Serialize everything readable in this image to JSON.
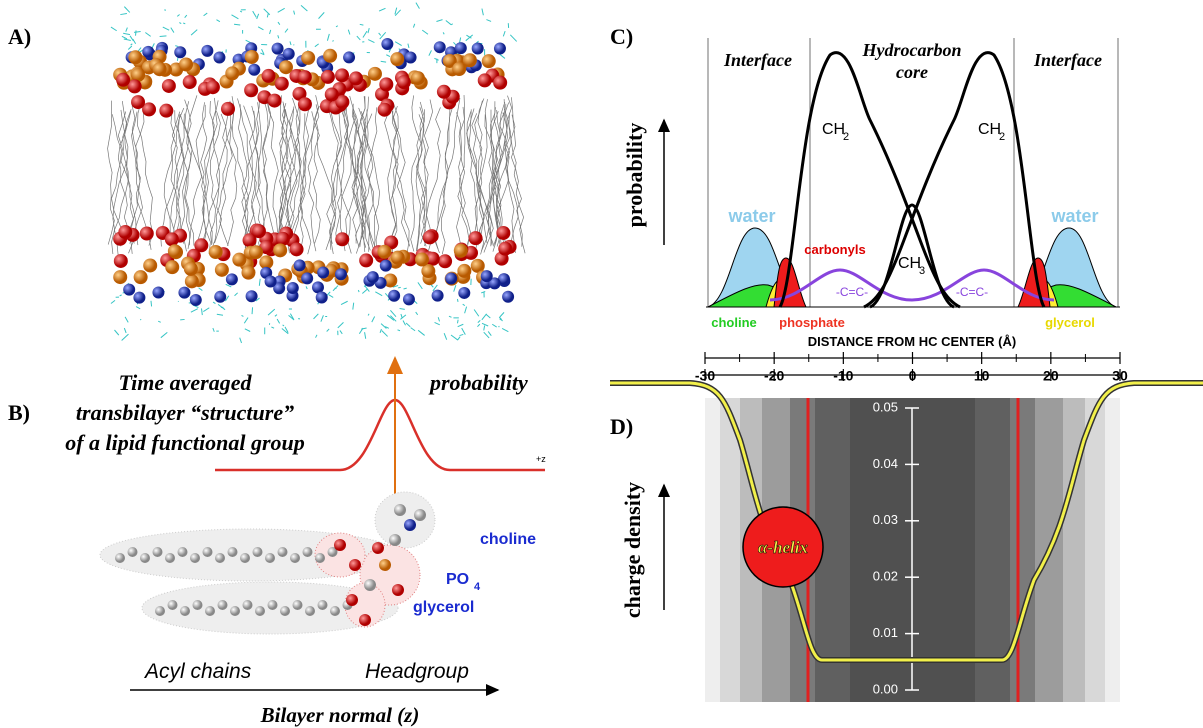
{
  "panels": {
    "a": {
      "label": "A)"
    },
    "b": {
      "label": "B)",
      "title_lines": [
        "Time averaged",
        "transbilayer “structure”",
        "of a lipid functional group"
      ],
      "probability": "probability",
      "z_label": "+z",
      "choline": "choline",
      "po4": "PO",
      "po4_sub": "4",
      "glycerol": "glycerol",
      "acyl": "Acyl chains",
      "headgroup": "Headgroup",
      "normal": "Bilayer normal (z)"
    },
    "c": {
      "label": "C)",
      "y_label": "probability",
      "interface_left": "Interface",
      "core_lines": [
        "Hydrocarbon",
        "core"
      ],
      "interface_right": "Interface",
      "ch2": "CH",
      "ch2_sub": "2",
      "ch3": "CH",
      "ch3_sub": "3",
      "water": "water",
      "carbonyls": "carbonyls",
      "cc": "-C=C-",
      "choline": "choline",
      "phosphate": "phosphate",
      "glycerol": "glycerol"
    },
    "d": {
      "label": "D)",
      "y_label": "charge density",
      "helix": "α-helix",
      "ylim": [
        0,
        0.05
      ],
      "yticks": [
        {
          "value": 0,
          "label": "0.00"
        },
        {
          "value": 0.01,
          "label": "0.01"
        },
        {
          "value": 0.02,
          "label": "0.02"
        },
        {
          "value": 0.03,
          "label": "0.03"
        },
        {
          "value": 0.04,
          "label": "0.04"
        },
        {
          "value": 0.05,
          "label": "0.05"
        }
      ]
    }
  },
  "x_axis": {
    "label": "DISTANCE FROM HC CENTER (Å)",
    "xlim": [
      -30,
      30
    ],
    "xticks": [
      -30,
      -20,
      -10,
      0,
      10,
      20,
      30
    ],
    "minor_xticks": [
      -25,
      -15,
      -5,
      5,
      15,
      25
    ]
  }
}
